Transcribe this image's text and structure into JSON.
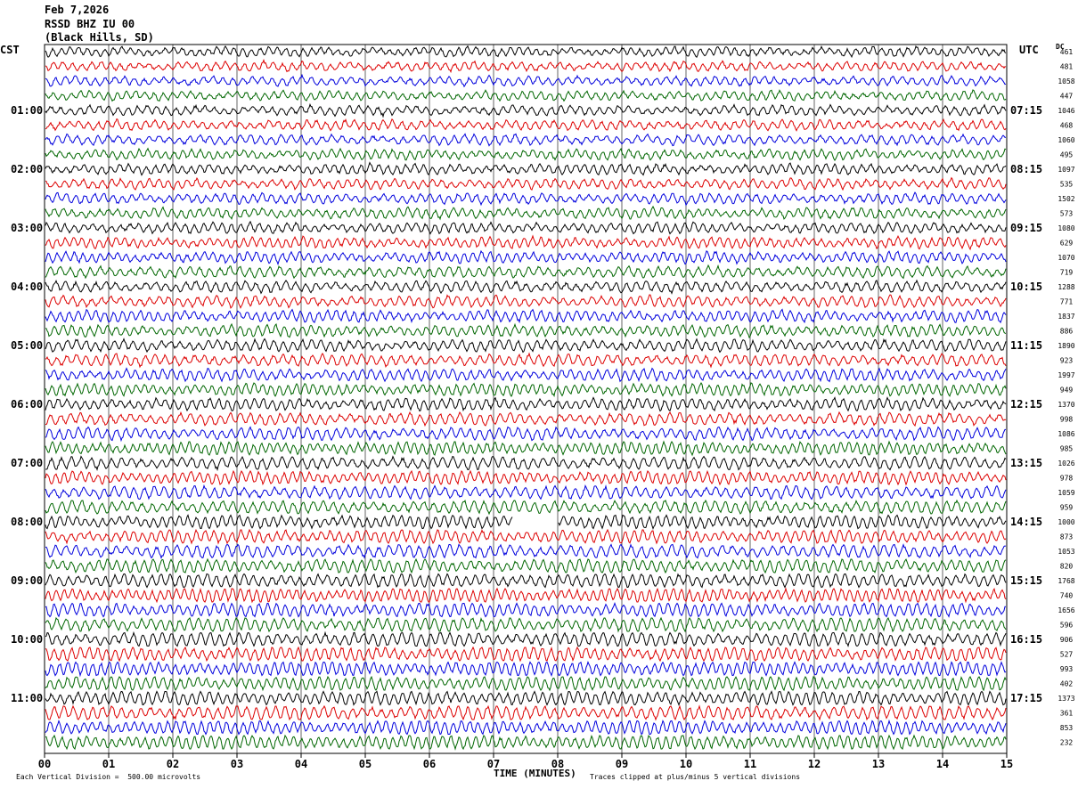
{
  "header": {
    "date": "Feb 7,2026",
    "station": "RSSD BHZ IU 00",
    "location": "(Black Hills, SD)"
  },
  "left_axis_label": "CST",
  "right_axis_label": "UTC",
  "dc_label": "DC",
  "footer": {
    "scale_note": "Each Vertical Division =  500.00 microvolts",
    "xlabel": "TIME (MINUTES)",
    "clip_note": "Traces clipped at plus/minus 5 vertical divisions"
  },
  "colors": {
    "trace_cycle": [
      "#000000",
      "#dd0000",
      "#0000dd",
      "#006600"
    ],
    "grid": "#000000"
  },
  "chart_data": {
    "type": "line",
    "title": "",
    "xlabel": "TIME (MINUTES)",
    "ylabel": "",
    "xlim": [
      0,
      15
    ],
    "x_ticks": [
      "00",
      "01",
      "02",
      "03",
      "04",
      "05",
      "06",
      "07",
      "08",
      "09",
      "10",
      "11",
      "12",
      "13",
      "14",
      "15"
    ],
    "grid": "vertical",
    "traces_per_hour": 4,
    "trace_count": 48,
    "left_hour_labels": [
      "01:00",
      "02:00",
      "03:00",
      "04:00",
      "05:00",
      "06:00",
      "07:00",
      "08:00",
      "09:00",
      "10:00",
      "11:00"
    ],
    "right_hour_labels": [
      "07:15",
      "08:15",
      "09:15",
      "10:15",
      "11:15",
      "12:15",
      "13:15",
      "14:15",
      "15:15",
      "16:15",
      "17:15"
    ],
    "dc_offsets": [
      461,
      481,
      1058,
      447,
      1046,
      468,
      1060,
      495,
      1097,
      535,
      1502,
      573,
      1080,
      629,
      1070,
      719,
      1288,
      771,
      1837,
      886,
      1890,
      923,
      1997,
      949,
      1370,
      998,
      1086,
      985,
      1026,
      978,
      1059,
      959,
      1000,
      873,
      1053,
      820,
      1768,
      740,
      1656,
      596,
      906,
      527,
      993,
      402,
      1373,
      361,
      853,
      232
    ],
    "data_gap": {
      "trace_index": 32,
      "minute_start": 7.3,
      "minute_end": 8.0
    }
  }
}
